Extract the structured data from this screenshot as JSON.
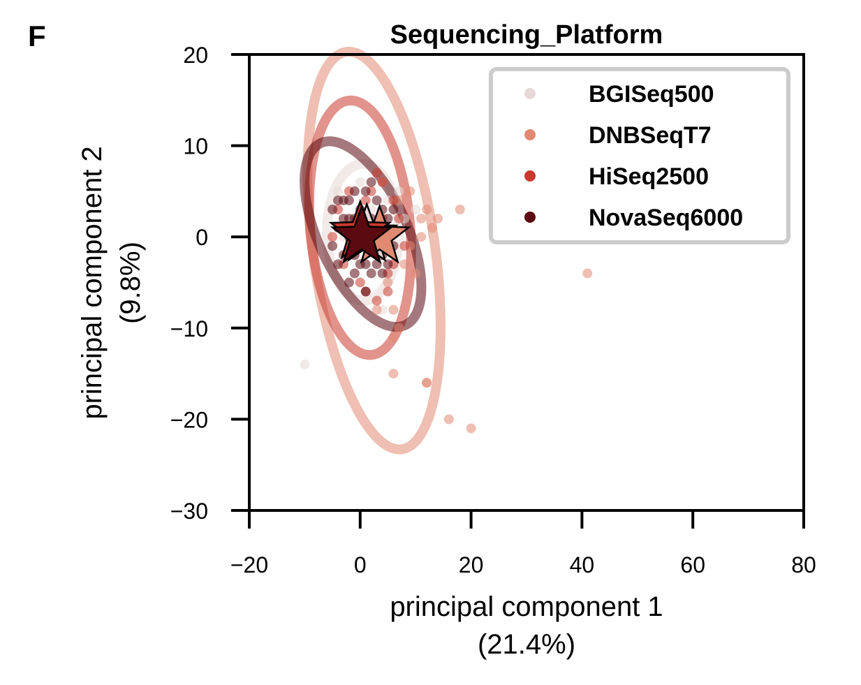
{
  "panel_label": "F",
  "chart_data": {
    "type": "scatter",
    "title": "Sequencing_Platform",
    "xlabel": "principal component 1",
    "xlabel_sub": "(21.4%)",
    "ylabel": "principal component 2",
    "ylabel_sub": "(9.8%)",
    "xlim": [
      -20,
      80
    ],
    "ylim": [
      -30,
      20
    ],
    "xticks": [
      -20,
      0,
      20,
      40,
      60,
      80
    ],
    "yticks": [
      -30,
      -20,
      -10,
      0,
      10,
      20
    ],
    "tick_labels_x": [
      "−20",
      "0",
      "20",
      "40",
      "60",
      "80"
    ],
    "tick_labels_y": [
      "−30",
      "−20",
      "−10",
      "0",
      "10",
      "20"
    ],
    "grid": false,
    "legend_position": "top-right",
    "series": [
      {
        "name": "BGISeq500",
        "color": "#e6d8d6",
        "centroid": [
          1.2,
          0.2
        ],
        "ellipse": {
          "cx": 0.5,
          "cy": 0.5,
          "rx": 6.5,
          "ry": 7.5,
          "angle": 0
        },
        "points": [
          [
            -10,
            -14
          ],
          [
            2,
            3
          ],
          [
            -1,
            -2
          ],
          [
            3,
            1
          ],
          [
            5,
            4
          ],
          [
            -3,
            0
          ],
          [
            1,
            -6
          ],
          [
            8,
            2
          ],
          [
            6,
            -3
          ],
          [
            -4,
            5
          ],
          [
            4,
            -8
          ],
          [
            0,
            6
          ],
          [
            10,
            3
          ],
          [
            7,
            5
          ]
        ]
      },
      {
        "name": "DNBSeqT7",
        "color": "#e08a72",
        "centroid": [
          3.5,
          0.0
        ],
        "ellipse": {
          "cx": 2.5,
          "cy": -1.5,
          "rx": 11,
          "ry": 22,
          "angle": -8
        },
        "points": [
          [
            41,
            -4
          ],
          [
            20,
            -21
          ],
          [
            16,
            -20
          ],
          [
            12,
            -16
          ],
          [
            12,
            -16
          ],
          [
            6,
            -15
          ],
          [
            6,
            -11
          ],
          [
            7,
            -10
          ],
          [
            6,
            -8
          ],
          [
            3,
            -8
          ],
          [
            18,
            3
          ],
          [
            14,
            2
          ],
          [
            13,
            1
          ],
          [
            11,
            2
          ],
          [
            9,
            5
          ],
          [
            10,
            -4
          ],
          [
            8,
            -3
          ],
          [
            9,
            -1
          ],
          [
            7,
            4
          ],
          [
            4,
            6
          ],
          [
            11,
            0
          ],
          [
            12,
            3
          ],
          [
            5,
            -5
          ]
        ]
      },
      {
        "name": "HiSeq2500",
        "color": "#c83a2e",
        "centroid": [
          0.0,
          0.5
        ],
        "ellipse": {
          "cx": 0.0,
          "cy": 1.0,
          "rx": 9,
          "ry": 14,
          "angle": -5
        },
        "points": [
          [
            3,
            7
          ],
          [
            4,
            6
          ],
          [
            6,
            4
          ],
          [
            7,
            2
          ],
          [
            5,
            -6
          ],
          [
            3,
            -7
          ],
          [
            1,
            -6
          ],
          [
            -2,
            5
          ],
          [
            -4,
            3
          ],
          [
            -5,
            0
          ],
          [
            6,
            -3
          ],
          [
            5,
            -4
          ],
          [
            8,
            -1
          ],
          [
            2,
            5
          ],
          [
            -3,
            -3
          ],
          [
            0,
            -5
          ],
          [
            4,
            2
          ],
          [
            1,
            4
          ]
        ]
      },
      {
        "name": "NovaSeq6000",
        "color": "#5a0a10",
        "centroid": [
          0.3,
          0.0
        ],
        "ellipse": {
          "cx": 0.5,
          "cy": 0.3,
          "rx": 8,
          "ry": 11,
          "angle": -25
        },
        "points": [
          [
            -5,
            3
          ],
          [
            -4,
            1
          ],
          [
            -3,
            -2
          ],
          [
            -2,
            4
          ],
          [
            -1,
            -4
          ],
          [
            0,
            3
          ],
          [
            1,
            -3
          ],
          [
            2,
            2
          ],
          [
            3,
            -1
          ],
          [
            4,
            3
          ],
          [
            5,
            0
          ],
          [
            -4,
            -3
          ],
          [
            -2,
            0
          ],
          [
            1,
            1
          ],
          [
            3,
            4
          ],
          [
            2,
            -4
          ],
          [
            0,
            -1
          ],
          [
            -1,
            2
          ],
          [
            4,
            -2
          ],
          [
            -3,
            2
          ],
          [
            2,
            0
          ],
          [
            -1,
            -2
          ],
          [
            5,
            2
          ],
          [
            -5,
            -1
          ],
          [
            1,
            5
          ],
          [
            0,
            1
          ],
          [
            6,
            -1
          ],
          [
            -2,
            -5
          ],
          [
            3,
            1
          ],
          [
            -3,
            4
          ],
          [
            2,
            6
          ],
          [
            4,
            -4
          ],
          [
            1,
            -6
          ],
          [
            -1,
            5
          ],
          [
            6,
            3
          ],
          [
            -4,
            4
          ],
          [
            0,
            -3
          ],
          [
            3,
            -3
          ],
          [
            5,
            -3
          ],
          [
            -2,
            2
          ]
        ]
      }
    ]
  }
}
